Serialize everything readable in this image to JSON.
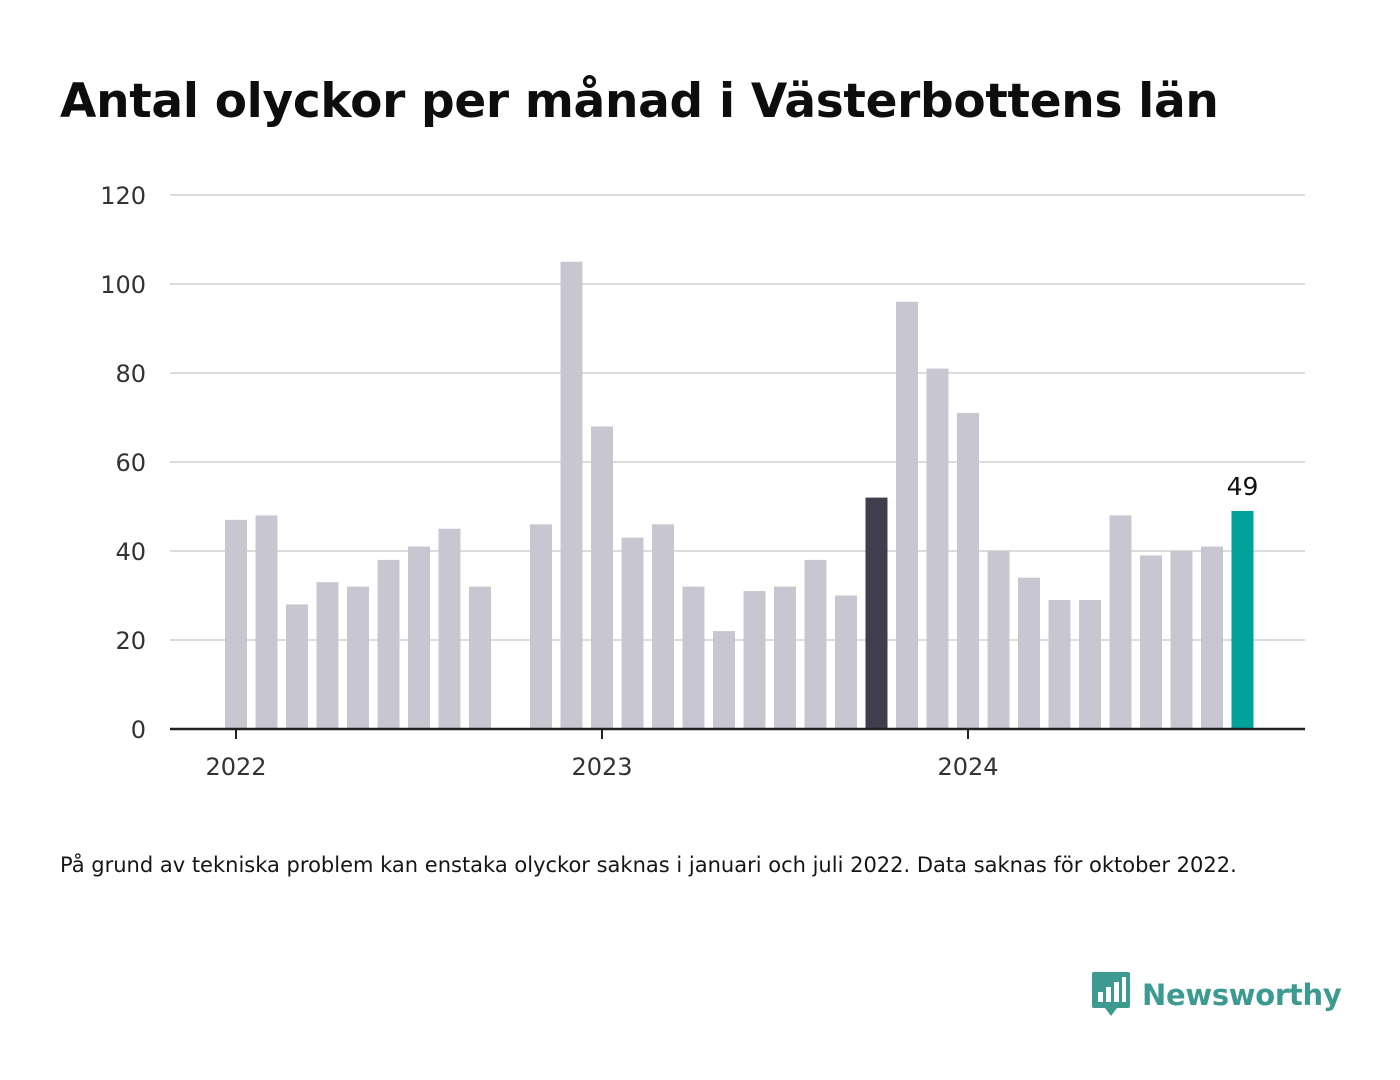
{
  "title": "Antal olyckor per månad i Västerbottens län",
  "footnote": "På grund av tekniska problem kan enstaka olyckor saknas i januari och juli 2022. Data saknas för oktober 2022.",
  "brand": {
    "name": "Newsworthy",
    "color": "#3d9a90",
    "icon": "bar-chart-speech-bubble-icon"
  },
  "colors": {
    "default_bar": "#c8c7d1",
    "comparison_bar": "#403e4c",
    "current_bar": "#00a39a",
    "grid": "#dcdcdc",
    "axis": "#222222"
  },
  "chart_data": {
    "type": "bar",
    "title": "Antal olyckor per månad i Västerbottens län",
    "xlabel": "",
    "ylabel": "",
    "ylim": [
      0,
      120
    ],
    "yticks": [
      0,
      20,
      40,
      60,
      80,
      100,
      120
    ],
    "xticks": [
      {
        "label": "2022",
        "category": "2022-01"
      },
      {
        "label": "2023",
        "category": "2023-01"
      },
      {
        "label": "2024",
        "category": "2024-01"
      }
    ],
    "grid": true,
    "categories": [
      "2022-01",
      "2022-02",
      "2022-03",
      "2022-04",
      "2022-05",
      "2022-06",
      "2022-07",
      "2022-08",
      "2022-09",
      "2022-10",
      "2022-11",
      "2022-12",
      "2023-01",
      "2023-02",
      "2023-03",
      "2023-04",
      "2023-05",
      "2023-06",
      "2023-07",
      "2023-08",
      "2023-09",
      "2023-10",
      "2023-11",
      "2023-12",
      "2024-01",
      "2024-02",
      "2024-03",
      "2024-04",
      "2024-05",
      "2024-06",
      "2024-07",
      "2024-08",
      "2024-09",
      "2024-10"
    ],
    "values": [
      47,
      48,
      28,
      33,
      32,
      38,
      41,
      45,
      32,
      null,
      46,
      105,
      68,
      43,
      46,
      32,
      22,
      31,
      32,
      38,
      30,
      52,
      96,
      81,
      71,
      40,
      34,
      29,
      29,
      48,
      39,
      40,
      41,
      49
    ],
    "highlights": {
      "comparison": "2023-10",
      "current": "2024-10"
    },
    "annotations": [
      {
        "category": "2024-10",
        "text": "49"
      }
    ]
  }
}
